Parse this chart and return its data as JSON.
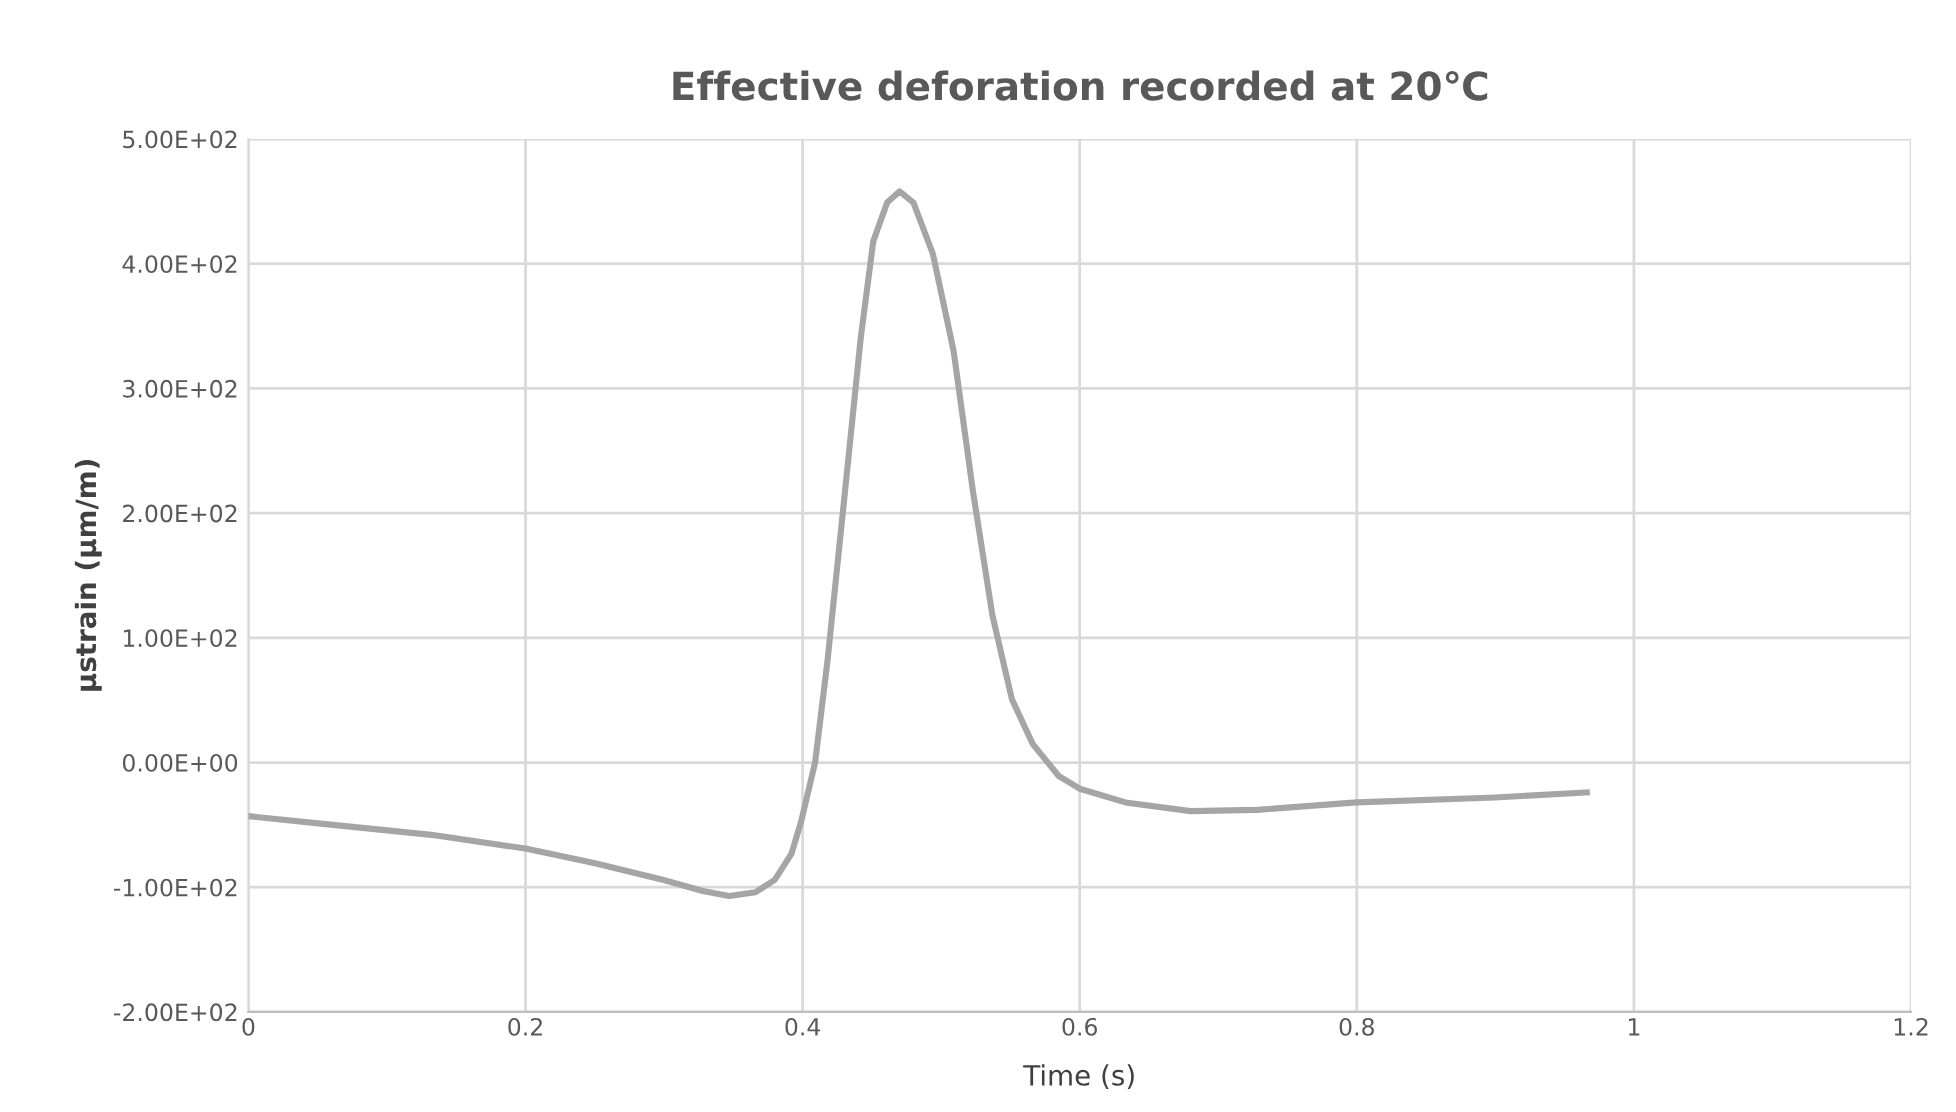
{
  "chart_data": {
    "type": "line",
    "title": "Effective deforation recorded at 20℃",
    "xlabel": "Time (s)",
    "ylabel": "μstrain (μm/m)",
    "series": [
      {
        "color": "#a5a5a5",
        "x": [
          0,
          0.061,
          0.132,
          0.2,
          0.251,
          0.299,
          0.328,
          0.347,
          0.366,
          0.38,
          0.392,
          0.399,
          0.409,
          0.418,
          0.43,
          0.442,
          0.451,
          0.461,
          0.47,
          0.48,
          0.494,
          0.509,
          0.523,
          0.537,
          0.551,
          0.566,
          0.585,
          0.6,
          0.633,
          0.68,
          0.728,
          0.8,
          0.9,
          0.966
        ],
        "values": [
          -43,
          -50,
          -58,
          -69,
          -81,
          -94,
          -103,
          -107,
          -104,
          -94,
          -73,
          -47,
          0,
          82,
          211,
          341,
          418,
          449,
          458,
          449,
          408,
          330,
          217,
          118,
          51,
          15,
          -11,
          -21,
          -32,
          -39,
          -38,
          -32,
          -28,
          -24
        ]
      }
    ],
    "xlim": [
      0,
      1.2
    ],
    "xticks": [
      0,
      0.2,
      0.4,
      0.6,
      0.8,
      1,
      1.2
    ],
    "ylim": [
      -200,
      500
    ],
    "yticks": [
      {
        "value": -200,
        "label": "-2.00E+02"
      },
      {
        "value": -100,
        "label": "-1.00E+02"
      },
      {
        "value": 0,
        "label": "0.00E+00"
      },
      {
        "value": 100,
        "label": "1.00E+02"
      },
      {
        "value": 200,
        "label": "2.00E+02"
      },
      {
        "value": 300,
        "label": "3.00E+02"
      },
      {
        "value": 400,
        "label": "4.00E+02"
      },
      {
        "value": 500,
        "label": "5.00E+02"
      }
    ],
    "grid": true,
    "legend": false,
    "marker": "none",
    "line_style": "solid"
  }
}
